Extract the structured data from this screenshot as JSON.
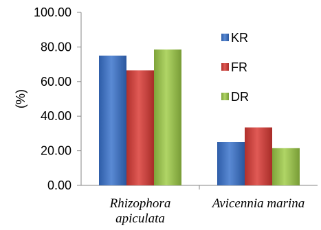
{
  "chart_data": {
    "type": "bar",
    "ylabel": "(%)",
    "ylim": [
      0,
      100
    ],
    "yticks": [
      "0.00",
      "20.00",
      "40.00",
      "60.00",
      "80.00",
      "100.00"
    ],
    "categories": [
      [
        "Rhizophora",
        "apiculata"
      ],
      [
        "Avicennia marina"
      ]
    ],
    "series": [
      {
        "name": "KR",
        "color": "#3f6fbf",
        "values": [
          75.0,
          25.0
        ]
      },
      {
        "name": "FR",
        "color": "#c83a36",
        "values": [
          66.5,
          33.5
        ]
      },
      {
        "name": "DR",
        "color": "#94bb46",
        "values": [
          78.5,
          21.5
        ]
      }
    ],
    "legend_position": "inside-right",
    "grid": false
  }
}
